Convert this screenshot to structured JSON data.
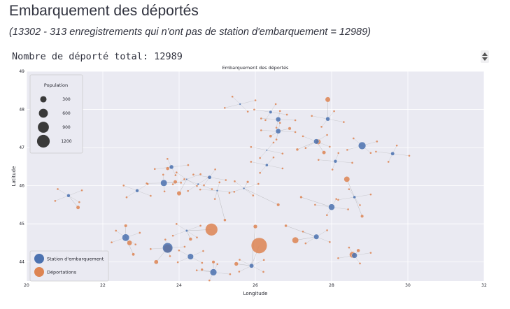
{
  "page": {
    "title": "Embarquement des déportés",
    "subtitle": "(13302 - 313 enregistrements qui n'ont pas de station d'embarquement = 12989)",
    "output_text": "Nombre de déporté total: 12989"
  },
  "colors": {
    "station": "#4c72b0",
    "deportation": "#dd8452",
    "background": "#eaeaf2",
    "grid": "#ffffff",
    "edge": "#9a9a9a"
  },
  "chart_data": {
    "type": "scatter",
    "title": "Embarquement des déportés",
    "xlabel": "Longitude",
    "ylabel": "Latitude",
    "xlim": [
      20,
      32
    ],
    "ylim": [
      43.5,
      49
    ],
    "xticks": [
      20,
      22,
      24,
      26,
      28,
      30,
      32
    ],
    "yticks": [
      44,
      45,
      46,
      47,
      48,
      49
    ],
    "grid": true,
    "size_legend": {
      "title": "Population",
      "placement": "upper-left",
      "values": [
        300,
        600,
        900,
        1200
      ]
    },
    "color_legend": {
      "placement": "lower-left",
      "entries": [
        "Station d'embarquement",
        "Déportations"
      ]
    },
    "series": [
      {
        "name": "Station d'embarquement",
        "points": [
          {
            "x": 21.1,
            "y": 45.74,
            "v": 60
          },
          {
            "x": 22.6,
            "y": 44.64,
            "v": 260
          },
          {
            "x": 23.7,
            "y": 44.37,
            "v": 520
          },
          {
            "x": 24.3,
            "y": 44.14,
            "v": 180
          },
          {
            "x": 24.9,
            "y": 43.73,
            "v": 230
          },
          {
            "x": 25.9,
            "y": 43.9,
            "v": 100
          },
          {
            "x": 23.6,
            "y": 46.07,
            "v": 220
          },
          {
            "x": 23.8,
            "y": 46.49,
            "v": 90
          },
          {
            "x": 22.9,
            "y": 45.87,
            "v": 60
          },
          {
            "x": 24.8,
            "y": 46.22,
            "v": 70
          },
          {
            "x": 25.0,
            "y": 45.87,
            "v": 20
          },
          {
            "x": 24.2,
            "y": 46.17,
            "v": 15
          },
          {
            "x": 25.6,
            "y": 48.14,
            "v": 20
          },
          {
            "x": 26.4,
            "y": 47.93,
            "v": 50
          },
          {
            "x": 26.6,
            "y": 47.74,
            "v": 120
          },
          {
            "x": 26.6,
            "y": 47.43,
            "v": 130
          },
          {
            "x": 26.3,
            "y": 46.93,
            "v": 15
          },
          {
            "x": 27.6,
            "y": 47.16,
            "v": 140
          },
          {
            "x": 27.9,
            "y": 47.75,
            "v": 90
          },
          {
            "x": 28.8,
            "y": 47.05,
            "v": 280
          },
          {
            "x": 29.6,
            "y": 46.84,
            "v": 70
          },
          {
            "x": 28.1,
            "y": 46.64,
            "v": 60
          },
          {
            "x": 28.0,
            "y": 45.44,
            "v": 200
          },
          {
            "x": 27.6,
            "y": 44.66,
            "v": 140
          },
          {
            "x": 28.6,
            "y": 44.17,
            "v": 150
          },
          {
            "x": 28.6,
            "y": 45.7,
            "v": 40
          },
          {
            "x": 24.2,
            "y": 44.82,
            "v": 30
          },
          {
            "x": 26.3,
            "y": 46.54,
            "v": 40
          },
          {
            "x": 25.7,
            "y": 45.93,
            "v": 20
          },
          {
            "x": 24.5,
            "y": 46.04,
            "v": 20
          }
        ]
      },
      {
        "name": "Déportations",
        "points": [
          {
            "x": 26.1,
            "y": 44.43,
            "v": 1200
          },
          {
            "x": 24.85,
            "y": 44.85,
            "v": 720
          },
          {
            "x": 23.7,
            "y": 44.35,
            "v": 330
          },
          {
            "x": 27.05,
            "y": 44.57,
            "v": 190
          },
          {
            "x": 28.4,
            "y": 46.17,
            "v": 150
          },
          {
            "x": 27.9,
            "y": 48.26,
            "v": 120
          },
          {
            "x": 28.55,
            "y": 44.19,
            "v": 180
          },
          {
            "x": 22.7,
            "y": 44.5,
            "v": 110
          },
          {
            "x": 24.0,
            "y": 45.8,
            "v": 90
          },
          {
            "x": 23.4,
            "y": 44.0,
            "v": 80
          },
          {
            "x": 25.5,
            "y": 43.95,
            "v": 70
          },
          {
            "x": 21.35,
            "y": 45.43,
            "v": 60
          },
          {
            "x": 26.0,
            "y": 44.93,
            "v": 70
          },
          {
            "x": 22.6,
            "y": 44.95,
            "v": 40
          },
          {
            "x": 27.8,
            "y": 46.87,
            "v": 60
          },
          {
            "x": 27.65,
            "y": 47.15,
            "v": 120
          },
          {
            "x": 26.6,
            "y": 45.5,
            "v": 40
          },
          {
            "x": 24.3,
            "y": 44.6,
            "v": 50
          },
          {
            "x": 23.7,
            "y": 46.45,
            "v": 50
          },
          {
            "x": 28.8,
            "y": 45.2,
            "v": 40
          },
          {
            "x": 25.2,
            "y": 45.1,
            "v": 30
          },
          {
            "x": 24.9,
            "y": 44.0,
            "v": 40
          },
          {
            "x": 22.8,
            "y": 44.2,
            "v": 35
          },
          {
            "x": 28.7,
            "y": 44.3,
            "v": 50
          },
          {
            "x": 26.9,
            "y": 47.5,
            "v": 40
          },
          {
            "x": 26.4,
            "y": 47.3,
            "v": 35
          },
          {
            "x": 27.1,
            "y": 46.95,
            "v": 30
          },
          {
            "x": 25.8,
            "y": 46.1,
            "v": 25
          },
          {
            "x": 23.9,
            "y": 46.1,
            "v": 60
          },
          {
            "x": 27.2,
            "y": 45.7,
            "v": 25
          },
          {
            "x": 26.8,
            "y": 44.95,
            "v": 30
          },
          {
            "x": 24.6,
            "y": 43.8,
            "v": 25
          }
        ]
      }
    ]
  }
}
